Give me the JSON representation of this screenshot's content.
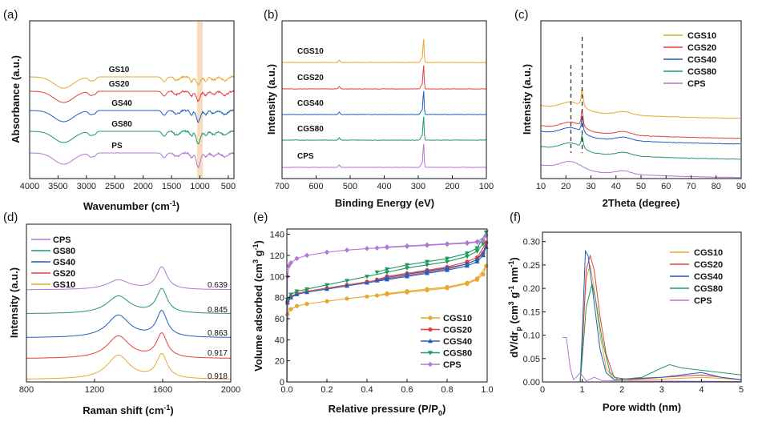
{
  "colors": {
    "yellow": "#e6a82e",
    "red": "#e2413f",
    "blue": "#1f5fbf",
    "green": "#1e9a5e",
    "purple": "#b277d3",
    "band": "#f8dcc0"
  },
  "panels": [
    {
      "id": "a",
      "letter": "(a)",
      "xlabel": "Wavenumber (cm",
      "xlabel_sup": "-1",
      "xlabel_tail": ")",
      "ylabel": "Absorbance (a.u.)",
      "xlim": [
        4000,
        400
      ],
      "xticks": [
        "4000",
        "3500",
        "3000",
        "2500",
        "2000",
        "1500",
        "1000",
        "500"
      ],
      "highlight_band": [
        1050,
        950
      ],
      "series": [
        {
          "label": "GS10",
          "color": "yellow"
        },
        {
          "label": "GS20",
          "color": "red"
        },
        {
          "label": "GS40",
          "color": "blue"
        },
        {
          "label": "GS80",
          "color": "green"
        },
        {
          "label": "PS",
          "color": "purple"
        }
      ]
    },
    {
      "id": "b",
      "letter": "(b)",
      "xlabel": "Binding Energy (eV)",
      "ylabel": "Intensity (a.u.)",
      "xlim": [
        700,
        100
      ],
      "xticks": [
        "700",
        "600",
        "500",
        "400",
        "300",
        "200",
        "100"
      ],
      "series": [
        {
          "label": "CGS10",
          "color": "yellow"
        },
        {
          "label": "CGS20",
          "color": "red"
        },
        {
          "label": "CGS40",
          "color": "blue"
        },
        {
          "label": "CGS80",
          "color": "green"
        },
        {
          "label": "CPS",
          "color": "purple"
        }
      ]
    },
    {
      "id": "c",
      "letter": "(c)",
      "xlabel": "2Theta (degree)",
      "ylabel": "Intensity (a.u.)",
      "xlim": [
        10,
        90
      ],
      "xticks": [
        "10",
        "20",
        "30",
        "40",
        "50",
        "60",
        "70",
        "80",
        "90"
      ],
      "dashed_lines_at": [
        22,
        26.5
      ],
      "legend": [
        {
          "label": "CGS10",
          "color": "yellow"
        },
        {
          "label": "CGS20",
          "color": "red"
        },
        {
          "label": "CGS40",
          "color": "blue"
        },
        {
          "label": "CGS80",
          "color": "green"
        },
        {
          "label": "CPS",
          "color": "purple"
        }
      ]
    },
    {
      "id": "d",
      "letter": "(d)",
      "xlabel": "Raman shift (cm",
      "xlabel_sup": "-1",
      "xlabel_tail": ")",
      "ylabel": "Intensity (a.u.)",
      "xlim": [
        800,
        2000
      ],
      "xticks": [
        "800",
        "1200",
        "1600",
        "2000"
      ],
      "legend": [
        {
          "label": "CPS",
          "color": "purple"
        },
        {
          "label": "GS80",
          "color": "green"
        },
        {
          "label": "GS40",
          "color": "blue"
        },
        {
          "label": "GS20",
          "color": "red"
        },
        {
          "label": "GS10",
          "color": "yellow"
        }
      ],
      "ratios": [
        "0.639",
        "0.845",
        "0.863",
        "0.917",
        "0.918"
      ]
    },
    {
      "id": "e",
      "letter": "(e)",
      "xlabel": "Relative pressure (P/P",
      "xlabel_sub": "0",
      "xlabel_tail": ")",
      "ylabel": "Volume adsorbed (cm",
      "ylabel_sup1": "3",
      "ylabel_mid": " g",
      "ylabel_sup2": "-1",
      "ylabel_tail": ")",
      "xlim": [
        0,
        1.0
      ],
      "ylim": [
        0,
        145
      ],
      "xticks": [
        "0.0",
        "0.2",
        "0.4",
        "0.6",
        "0.8",
        "1.0"
      ],
      "yticks": [
        "0",
        "20",
        "40",
        "60",
        "80",
        "100",
        "120",
        "140"
      ],
      "legend": [
        {
          "label": "CGS10",
          "color": "yellow",
          "marker": "circle"
        },
        {
          "label": "CGS20",
          "color": "red",
          "marker": "circle"
        },
        {
          "label": "CGS40",
          "color": "blue",
          "marker": "triangle-up"
        },
        {
          "label": "CGS80",
          "color": "green",
          "marker": "triangle-down"
        },
        {
          "label": "CPS",
          "color": "purple",
          "marker": "diamond"
        }
      ],
      "series": [
        {
          "name": "CGS10",
          "color": "yellow",
          "adsorption": [
            [
              0.003,
              64
            ],
            [
              0.02,
              69
            ],
            [
              0.05,
              72
            ],
            [
              0.1,
              74
            ],
            [
              0.2,
              76.5
            ],
            [
              0.3,
              79
            ],
            [
              0.4,
              81
            ],
            [
              0.5,
              83
            ],
            [
              0.6,
              85
            ],
            [
              0.7,
              87
            ],
            [
              0.8,
              89
            ],
            [
              0.9,
              93
            ],
            [
              0.95,
              97
            ],
            [
              0.98,
              102
            ],
            [
              0.995,
              110
            ]
          ],
          "desorption": [
            [
              0.995,
              110
            ],
            [
              0.95,
              98
            ],
            [
              0.9,
              94
            ],
            [
              0.8,
              90
            ],
            [
              0.7,
              88
            ],
            [
              0.6,
              86
            ],
            [
              0.5,
              84
            ],
            [
              0.45,
              82
            ]
          ]
        },
        {
          "name": "CGS20",
          "color": "red",
          "adsorption": [
            [
              0.003,
              76
            ],
            [
              0.02,
              81
            ],
            [
              0.05,
              84
            ],
            [
              0.1,
              86
            ],
            [
              0.2,
              89
            ],
            [
              0.3,
              92
            ],
            [
              0.4,
              95
            ],
            [
              0.5,
              98
            ],
            [
              0.6,
              101
            ],
            [
              0.7,
              104
            ],
            [
              0.8,
              107
            ],
            [
              0.9,
              112
            ],
            [
              0.95,
              116
            ],
            [
              0.98,
              122
            ],
            [
              0.995,
              132
            ]
          ],
          "desorption": [
            [
              0.995,
              132
            ],
            [
              0.95,
              118
            ],
            [
              0.9,
              114
            ],
            [
              0.8,
              109
            ],
            [
              0.7,
              106
            ],
            [
              0.6,
              103
            ],
            [
              0.5,
              100
            ],
            [
              0.45,
              97
            ]
          ]
        },
        {
          "name": "CGS40",
          "color": "blue",
          "adsorption": [
            [
              0.003,
              75
            ],
            [
              0.02,
              80
            ],
            [
              0.05,
              83
            ],
            [
              0.1,
              85
            ],
            [
              0.2,
              88
            ],
            [
              0.3,
              91
            ],
            [
              0.4,
              94
            ],
            [
              0.5,
              97
            ],
            [
              0.6,
              100
            ],
            [
              0.7,
              103
            ],
            [
              0.8,
              106
            ],
            [
              0.9,
              110
            ],
            [
              0.95,
              114
            ],
            [
              0.98,
              120
            ],
            [
              0.995,
              128
            ]
          ],
          "desorption": [
            [
              0.995,
              128
            ],
            [
              0.95,
              116
            ],
            [
              0.9,
              112
            ],
            [
              0.8,
              108
            ],
            [
              0.7,
              105
            ],
            [
              0.6,
              102
            ],
            [
              0.5,
              99
            ],
            [
              0.45,
              96
            ]
          ]
        },
        {
          "name": "CGS80",
          "color": "green",
          "adsorption": [
            [
              0.003,
              78
            ],
            [
              0.02,
              83
            ],
            [
              0.05,
              86
            ],
            [
              0.1,
              88
            ],
            [
              0.2,
              92
            ],
            [
              0.3,
              96
            ],
            [
              0.4,
              100
            ],
            [
              0.5,
              104
            ],
            [
              0.6,
              108
            ],
            [
              0.7,
              111
            ],
            [
              0.8,
              114
            ],
            [
              0.9,
              119
            ],
            [
              0.95,
              124
            ],
            [
              0.98,
              131
            ],
            [
              0.995,
              142
            ]
          ],
          "desorption": [
            [
              0.995,
              142
            ],
            [
              0.95,
              127
            ],
            [
              0.9,
              122
            ],
            [
              0.8,
              117
            ],
            [
              0.7,
              114
            ],
            [
              0.6,
              111
            ],
            [
              0.5,
              107
            ],
            [
              0.45,
              104
            ]
          ]
        },
        {
          "name": "CPS",
          "color": "purple",
          "adsorption": [
            [
              0.003,
              100
            ],
            [
              0.01,
              110
            ],
            [
              0.02,
              113
            ],
            [
              0.05,
              117
            ],
            [
              0.1,
              120
            ],
            [
              0.2,
              123
            ],
            [
              0.3,
              125
            ],
            [
              0.4,
              126.5
            ],
            [
              0.5,
              127.5
            ],
            [
              0.6,
              128.5
            ],
            [
              0.7,
              129.5
            ],
            [
              0.8,
              130.5
            ],
            [
              0.9,
              131.5
            ],
            [
              0.95,
              132.5
            ],
            [
              0.98,
              134
            ],
            [
              0.995,
              139
            ]
          ],
          "desorption": [
            [
              0.995,
              139
            ],
            [
              0.95,
              133
            ],
            [
              0.9,
              132
            ],
            [
              0.8,
              131
            ],
            [
              0.7,
              130
            ],
            [
              0.6,
              129
            ],
            [
              0.5,
              128
            ],
            [
              0.45,
              127
            ]
          ]
        }
      ]
    },
    {
      "id": "f",
      "letter": "(f)",
      "xlabel": "Pore width (nm)",
      "ylabel": "dV/dr",
      "ylabel_sub": "p",
      "ylabel_mid": " (cm",
      "ylabel_sup1": "3",
      "ylabel_mid2": " g",
      "ylabel_sup2": "-1",
      "ylabel_mid3": " nm",
      "ylabel_sup3": "-1",
      "ylabel_tail": ")",
      "xlim": [
        0,
        5
      ],
      "ylim": [
        0,
        0.32
      ],
      "xticks": [
        "0",
        "1",
        "2",
        "3",
        "4",
        "5"
      ],
      "yticks": [
        "0.00",
        "0.05",
        "0.10",
        "0.15",
        "0.20",
        "0.25",
        "0.30"
      ],
      "legend": [
        {
          "label": "CGS10",
          "color": "yellow"
        },
        {
          "label": "CGS20",
          "color": "red"
        },
        {
          "label": "CGS40",
          "color": "blue"
        },
        {
          "label": "CGS80",
          "color": "green"
        },
        {
          "label": "CPS",
          "color": "purple"
        }
      ],
      "series": [
        {
          "name": "CGS10",
          "color": "yellow",
          "points": [
            [
              0.95,
              0
            ],
            [
              1.0,
              0.08
            ],
            [
              1.1,
              0.22
            ],
            [
              1.2,
              0.25
            ],
            [
              1.3,
              0.2
            ],
            [
              1.45,
              0.1
            ],
            [
              1.6,
              0.03
            ],
            [
              1.8,
              0.005
            ],
            [
              2.2,
              0.005
            ],
            [
              3,
              0.006
            ],
            [
              4,
              0.01
            ],
            [
              5,
              0.005
            ]
          ]
        },
        {
          "name": "CGS20",
          "color": "red",
          "points": [
            [
              0.95,
              0
            ],
            [
              1.0,
              0.07
            ],
            [
              1.1,
              0.24
            ],
            [
              1.2,
              0.27
            ],
            [
              1.3,
              0.24
            ],
            [
              1.45,
              0.14
            ],
            [
              1.6,
              0.06
            ],
            [
              1.8,
              0.01
            ],
            [
              2.2,
              0.005
            ],
            [
              3,
              0.01
            ],
            [
              4,
              0.015
            ],
            [
              5,
              0.005
            ]
          ]
        },
        {
          "name": "CGS40",
          "color": "blue",
          "points": [
            [
              0.95,
              0
            ],
            [
              1.0,
              0.1
            ],
            [
              1.08,
              0.28
            ],
            [
              1.15,
              0.27
            ],
            [
              1.3,
              0.17
            ],
            [
              1.45,
              0.07
            ],
            [
              1.6,
              0.02
            ],
            [
              1.8,
              0.005
            ],
            [
              2.5,
              0.008
            ],
            [
              3,
              0.01
            ],
            [
              3.5,
              0.015
            ],
            [
              4,
              0.02
            ],
            [
              4.5,
              0.01
            ],
            [
              5,
              0.005
            ]
          ]
        },
        {
          "name": "CGS80",
          "color": "green",
          "points": [
            [
              0.95,
              0
            ],
            [
              1.0,
              0.05
            ],
            [
              1.1,
              0.16
            ],
            [
              1.25,
              0.21
            ],
            [
              1.35,
              0.17
            ],
            [
              1.5,
              0.09
            ],
            [
              1.7,
              0.02
            ],
            [
              1.9,
              0.005
            ],
            [
              2.5,
              0.01
            ],
            [
              3,
              0.03
            ],
            [
              3.2,
              0.037
            ],
            [
              3.5,
              0.03
            ],
            [
              4,
              0.025
            ],
            [
              4.5,
              0.02
            ],
            [
              5,
              0.015
            ]
          ]
        },
        {
          "name": "CPS",
          "color": "purple",
          "points": [
            [
              0.5,
              0.095
            ],
            [
              0.6,
              0.095
            ],
            [
              0.7,
              0.03
            ],
            [
              0.78,
              0.005
            ],
            [
              0.85,
              0.01
            ],
            [
              0.95,
              0.02
            ],
            [
              1.1,
              0.002
            ],
            [
              1.3,
              0.01
            ],
            [
              1.5,
              0.003
            ],
            [
              2,
              0.002
            ],
            [
              5,
              0.001
            ]
          ]
        }
      ]
    }
  ]
}
